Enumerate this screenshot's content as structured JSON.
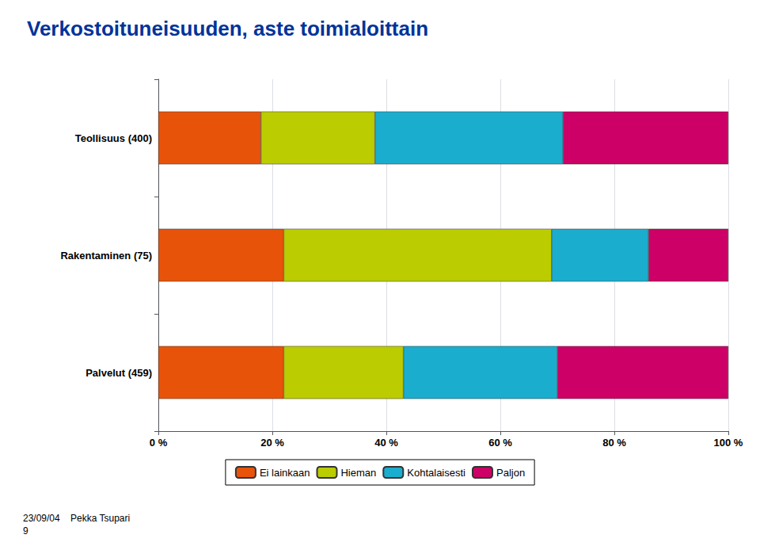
{
  "chart_data": {
    "type": "bar",
    "orientation": "horizontal",
    "stacked": true,
    "title": "Verkostoituneisuuden, aste toimialoittain",
    "categories": [
      "Teollisuus (400)",
      "Rakentaminen (75)",
      "Palvelut (459)"
    ],
    "series": [
      {
        "name": "Ei lainkaan",
        "color": "#E8530A",
        "values": [
          18,
          22,
          22
        ]
      },
      {
        "name": "Hieman",
        "color": "#BBCC00",
        "values": [
          20,
          47,
          21
        ]
      },
      {
        "name": "Kohtalaisesti",
        "color": "#1AADCE",
        "values": [
          33,
          17,
          27
        ]
      },
      {
        "name": "Paljon",
        "color": "#CC0066",
        "values": [
          29,
          14,
          30
        ]
      }
    ],
    "xlim": [
      0,
      100
    ],
    "xticks": [
      {
        "value": 0,
        "label": "0 %"
      },
      {
        "value": 20,
        "label": "20 %"
      },
      {
        "value": 40,
        "label": "40 %"
      },
      {
        "value": 60,
        "label": "60 %"
      },
      {
        "value": 80,
        "label": "80 %"
      },
      {
        "value": 100,
        "label": "100 %"
      }
    ],
    "grid": true,
    "legend": "bottom",
    "annotations": [
      "23/09/04    Pekka Tsupari",
      "9"
    ]
  }
}
